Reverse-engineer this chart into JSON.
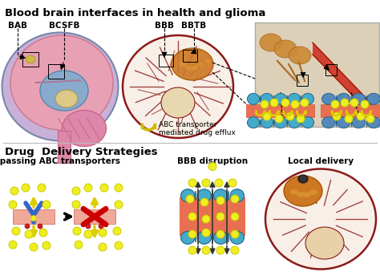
{
  "title_top": "Blood brain interfaces in health and glioma",
  "title_bottom": "Drug  Delivery Strategies",
  "bg_color": "#ffffff",
  "label_bab": "BAB",
  "label_bcsfb": "BCSFB",
  "label_bbb": "BBB",
  "label_bbtb": "BBTB",
  "label_bypass": "Bypassing ABC transporters",
  "label_bbb_dis": "BBB disruption",
  "label_local": "Local delivery",
  "abc_text": "ABC transporter\nmediated drug efflux",
  "color_brain_outer": "#c8a0c8",
  "color_brain_pink": "#e8a0b4",
  "color_brain_blue": "#a8c8e8",
  "color_glioma_brain_bg": "#f8f0e8",
  "color_glioma": "#cc7722",
  "color_dark_red": "#8b1a1a",
  "color_barrier": "#e87050",
  "color_cell_blue": "#4488cc",
  "color_cell_teal": "#44aacc",
  "color_drug": "#eeee22",
  "color_drug_edge": "#cccc00",
  "color_transporter_yellow": "#ddcc00",
  "color_red_x": "#cc0000",
  "color_magnified_bg": "#ddc898",
  "color_vessel_red": "#cc3322",
  "fig_width": 4.74,
  "fig_height": 3.44,
  "dpi": 100
}
